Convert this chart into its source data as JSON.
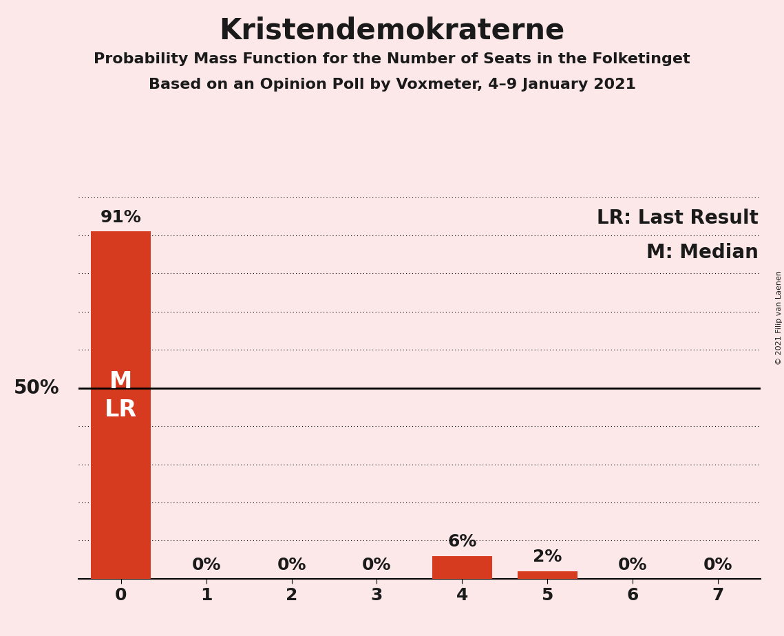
{
  "title": "Kristendemokraterne",
  "subtitle1": "Probability Mass Function for the Number of Seats in the Folketinget",
  "subtitle2": "Based on an Opinion Poll by Voxmeter, 4–9 January 2021",
  "copyright": "© 2021 Filip van Laenen",
  "categories": [
    0,
    1,
    2,
    3,
    4,
    5,
    6,
    7
  ],
  "values": [
    91,
    0,
    0,
    0,
    6,
    2,
    0,
    0
  ],
  "bar_color_main": "#d63b1f",
  "background_color": "#fce8e8",
  "text_color": "#1a1a1a",
  "ylabel_50": "50%",
  "median_label": "M",
  "lr_label": "LR",
  "legend_lr": "LR: Last Result",
  "legend_m": "M: Median",
  "title_fontsize": 30,
  "subtitle_fontsize": 16,
  "label_fontsize": 20,
  "tick_fontsize": 18,
  "annot_fontsize": 18,
  "inside_label_fontsize": 24
}
